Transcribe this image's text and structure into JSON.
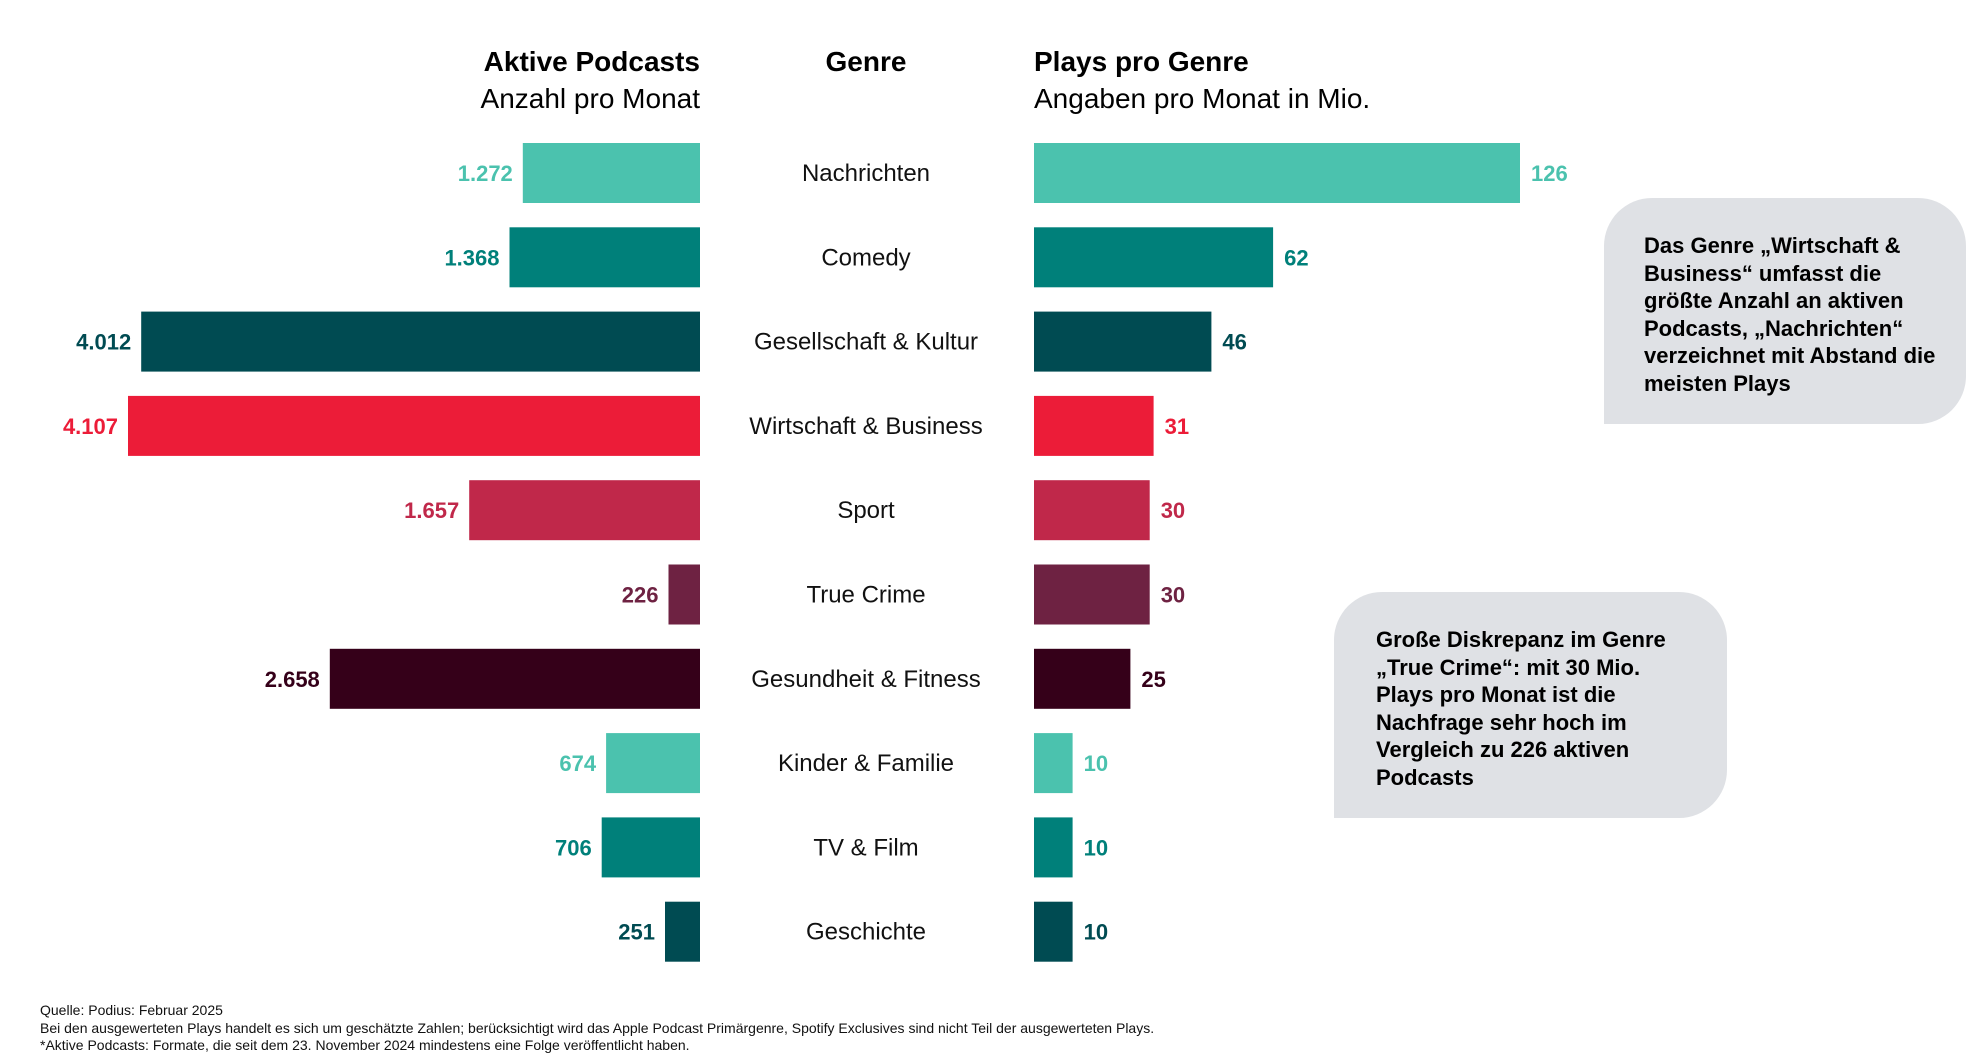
{
  "headers": {
    "left_title": "Aktive Podcasts",
    "left_subtitle": "Anzahl pro Monat",
    "center_title": "Genre",
    "right_title": "Plays pro Genre",
    "right_subtitle": "Angaben pro Monat in Mio."
  },
  "chart_data": {
    "type": "bar",
    "orientation": "horizontal-diverging",
    "categories": [
      "Nachrichten",
      "Comedy",
      "Gesellschaft & Kultur",
      "Wirtschaft & Business",
      "Sport",
      "True Crime",
      "Gesundheit & Fitness",
      "Kinder & Familie",
      "TV & Film",
      "Geschichte"
    ],
    "series": [
      {
        "name": "Aktive Podcasts",
        "direction": "left",
        "values": [
          1272,
          1368,
          4012,
          4107,
          1657,
          226,
          2658,
          674,
          706,
          251
        ],
        "value_labels": [
          "1.272",
          "1.368",
          "4.012",
          "4.107",
          "1.657",
          "226",
          "2.658",
          "674",
          "706",
          "251"
        ]
      },
      {
        "name": "Plays pro Genre",
        "direction": "right",
        "values": [
          126,
          62,
          46,
          31,
          30,
          30,
          25,
          10,
          10,
          10
        ],
        "value_labels": [
          "126",
          "62",
          "46",
          "31",
          "30",
          "30",
          "25",
          "10",
          "10",
          "10"
        ]
      }
    ],
    "colors": [
      "#4bc2ae",
      "#00807a",
      "#004b52",
      "#ec1c38",
      "#c0284a",
      "#6e2242",
      "#350019",
      "#4bc2ae",
      "#00807a",
      "#004b52"
    ],
    "left_xlim": [
      0,
      4107
    ],
    "right_xlim": [
      0,
      126
    ]
  },
  "callouts": [
    {
      "text": "Das Genre „Wirtschaft & Business“ umfasst die größte Anzahl an aktiven Podcasts, „Nachrichten“ verzeichnet mit Abstand die meisten Plays"
    },
    {
      "text": "Große Diskrepanz im Genre „True Crime“: mit 30 Mio. Plays pro Monat ist die Nachfrage sehr hoch im Vergleich zu 226 aktiven Podcasts"
    }
  ],
  "footnotes": {
    "source": "Quelle: Podius: Februar 2025",
    "note1": "Bei den ausgewerteten Plays handelt es sich um geschätzte Zahlen; berücksichtigt wird das Apple Podcast Primärgenre, Spotify Exclusives sind nicht Teil der ausgewerteten Plays.",
    "note2": "*Aktive Podcasts: Formate, die seit dem 23. November 2024 mindestens eine Folge veröffentlicht haben."
  }
}
